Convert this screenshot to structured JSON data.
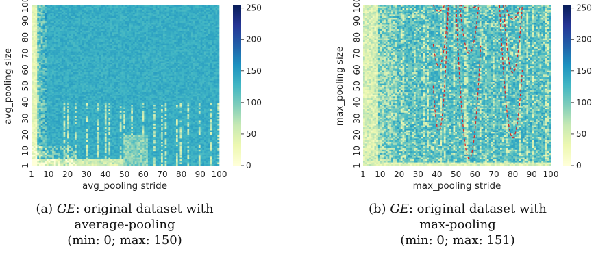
{
  "colors": {
    "colormap": [
      "#ffffd9",
      "#edf8b1",
      "#c7e9b4",
      "#7fcdbb",
      "#41b6c4",
      "#1d91c0",
      "#225ea8",
      "#253494",
      "#081d58"
    ],
    "guide_curve": "#d62728"
  },
  "chart_data": [
    {
      "type": "heatmap",
      "xlabel": "avg_pooling stride",
      "ylabel": "avg_pooling size",
      "x_ticks": [
        "1",
        "10",
        "20",
        "30",
        "40",
        "50",
        "60",
        "70",
        "80",
        "90",
        "100"
      ],
      "y_ticks": [
        "1",
        "10",
        "20",
        "30",
        "40",
        "50",
        "60",
        "70",
        "80",
        "90",
        "100"
      ],
      "xlim": [
        1,
        100
      ],
      "ylim": [
        1,
        100
      ],
      "colorbar": {
        "ticks": [
          "0",
          "50",
          "100",
          "150",
          "200",
          "250"
        ],
        "range": [
          0,
          255
        ]
      },
      "value_range": [
        0,
        150
      ],
      "caption": {
        "letter": "(a)",
        "metric": "GE",
        "line1": ": original dataset with",
        "line2": "average-pooling",
        "line3": "(min: 0; max: 150)"
      }
    },
    {
      "type": "heatmap",
      "xlabel": "max_pooling stride",
      "ylabel": "max_pooling size",
      "x_ticks": [
        "1",
        "10",
        "20",
        "30",
        "40",
        "50",
        "60",
        "70",
        "80",
        "90",
        "100"
      ],
      "y_ticks": [
        "1",
        "10",
        "20",
        "30",
        "40",
        "50",
        "60",
        "70",
        "80",
        "90",
        "100"
      ],
      "xlim": [
        1,
        100
      ],
      "ylim": [
        1,
        100
      ],
      "colorbar": {
        "ticks": [
          "0",
          "50",
          "100",
          "150",
          "200",
          "250"
        ],
        "range": [
          0,
          255
        ]
      },
      "value_range": [
        0,
        151
      ],
      "caption": {
        "letter": "(b)",
        "metric": "GE",
        "line1": ": original dataset with",
        "line2": "max-pooling",
        "line3": "(min: 0; max: 151)"
      },
      "guide_curves": [
        {
          "from_x": 38,
          "to_x": 46,
          "vertex": [
            41,
            22
          ]
        },
        {
          "from_x": 50,
          "to_x": 63,
          "vertex": [
            57,
            5
          ]
        },
        {
          "from_x": 73,
          "to_x": 85,
          "vertex": [
            80,
            18
          ]
        },
        {
          "from_x": 38,
          "to_x": 46,
          "vertex": [
            41,
            62
          ]
        },
        {
          "from_x": 52,
          "to_x": 62,
          "vertex": [
            57,
            70
          ]
        },
        {
          "from_x": 75,
          "to_x": 85,
          "vertex": [
            80,
            58
          ]
        },
        {
          "from_x": 38,
          "to_x": 44,
          "vertex": [
            41,
            96
          ]
        },
        {
          "from_x": 52,
          "to_x": 62,
          "vertex": [
            57,
            98
          ]
        },
        {
          "from_x": 76,
          "to_x": 84,
          "vertex": [
            80,
            91
          ]
        }
      ]
    }
  ]
}
